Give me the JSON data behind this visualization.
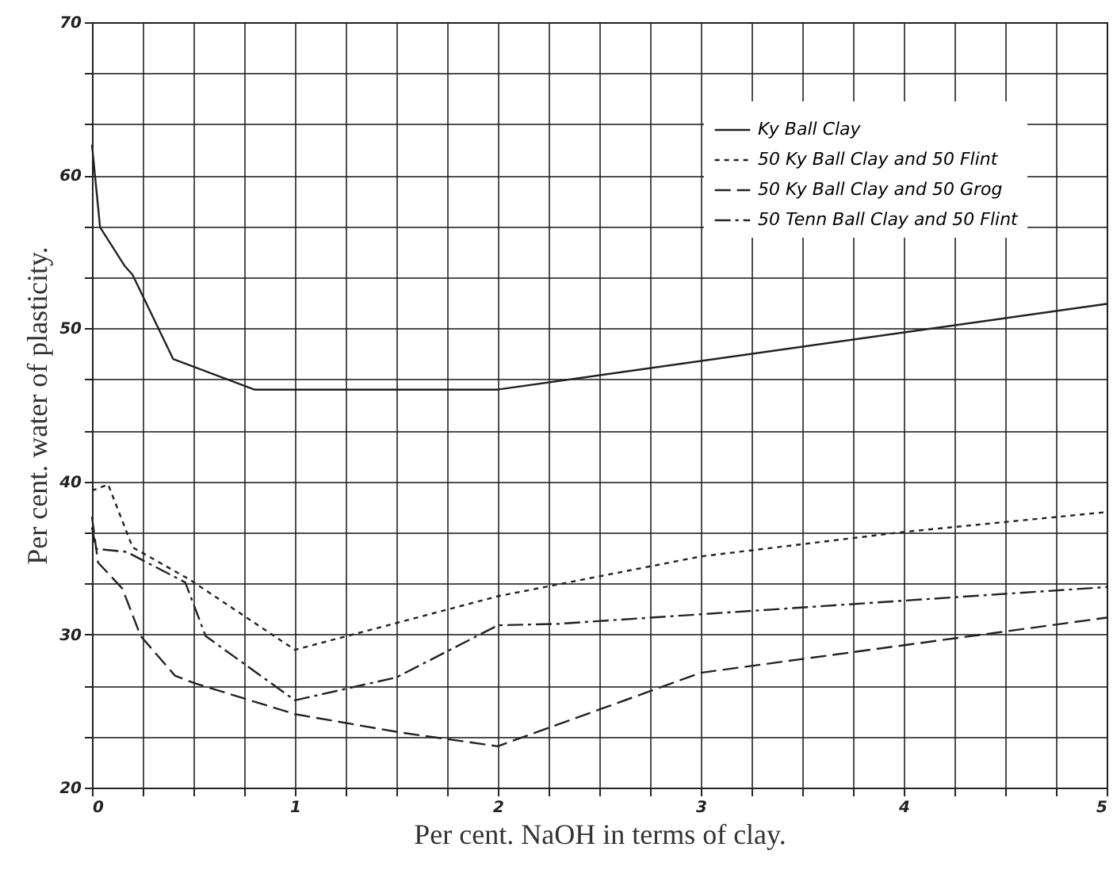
{
  "chart_data": {
    "type": "line",
    "xlabel": "Per cent. NaOH in terms of clay.",
    "ylabel": "Per cent. water of plasticity.",
    "xlim": [
      0,
      5
    ],
    "ylim": [
      20,
      70
    ],
    "xticks": [
      0,
      {
        "value": 0.25,
        "label": null
      },
      {
        "value": 0.5,
        "label": null
      },
      {
        "value": 0.75,
        "label": null
      },
      1,
      {
        "value": 1.25,
        "label": null
      },
      {
        "value": 1.5,
        "label": null
      },
      {
        "value": 1.75,
        "label": null
      },
      2,
      {
        "value": 2.25,
        "label": null
      },
      {
        "value": 2.5,
        "label": null
      },
      {
        "value": 2.75,
        "label": null
      },
      3,
      {
        "value": 3.25,
        "label": null
      },
      {
        "value": 3.5,
        "label": null
      },
      {
        "value": 3.75,
        "label": null
      },
      4,
      {
        "value": 4.25,
        "label": null
      },
      {
        "value": 4.5,
        "label": null
      },
      {
        "value": 4.75,
        "label": null
      },
      5
    ],
    "yticks": [
      20,
      {
        "value": 23.33,
        "label": null
      },
      {
        "value": 26.67,
        "label": null
      },
      30,
      {
        "value": 33.33,
        "label": null
      },
      {
        "value": 36.67,
        "label": null
      },
      40,
      {
        "value": 43.33,
        "label": null
      },
      {
        "value": 46.67,
        "label": null
      },
      50,
      {
        "value": 53.33,
        "label": null
      },
      {
        "value": 56.67,
        "label": null
      },
      60,
      {
        "value": 63.33,
        "label": null
      },
      {
        "value": 66.67,
        "label": null
      },
      70
    ],
    "grid": true,
    "legend": "top right",
    "marker": "none",
    "series": [
      {
        "name": "Ky Ball Clay",
        "color": "#222222",
        "line_style": "solid",
        "x": [
          0,
          0.04,
          0.16,
          0.2,
          0.4,
          0.8,
          2,
          5
        ],
        "values": [
          62,
          56.6,
          54.1,
          53.5,
          48,
          46,
          46,
          51.6
        ]
      },
      {
        "name": "50 Ky Ball Clay and 50 Flint",
        "color": "#222222",
        "line_style": "dotted",
        "x": [
          0,
          0.08,
          0.2,
          0.48,
          1,
          2,
          3,
          4,
          5
        ],
        "values": [
          39.4,
          39.8,
          35.7,
          33.6,
          29,
          32.5,
          35.1,
          36.7,
          38
        ]
      },
      {
        "name": "50 Ky Ball Clay and 50 Grog",
        "color": "#222222",
        "line_style": "dashed",
        "x": [
          0,
          0.03,
          0.15,
          0.24,
          0.41,
          0.51,
          1,
          1.52,
          2,
          3,
          5
        ],
        "values": [
          37.7,
          34.7,
          33,
          29.9,
          27.3,
          26.8,
          24.8,
          23.6,
          22.7,
          27.5,
          31.1
        ]
      },
      {
        "name": "50 Tenn Ball Clay and 50 Flint",
        "color": "#222222",
        "line_style": "dashdot",
        "x": [
          0,
          0.02,
          0.17,
          0.46,
          0.56,
          1,
          1.5,
          2,
          2.3,
          5
        ],
        "values": [
          37,
          35.6,
          35.4,
          33.4,
          29.9,
          25.7,
          27.2,
          30.6,
          30.7,
          33.1
        ]
      }
    ]
  }
}
